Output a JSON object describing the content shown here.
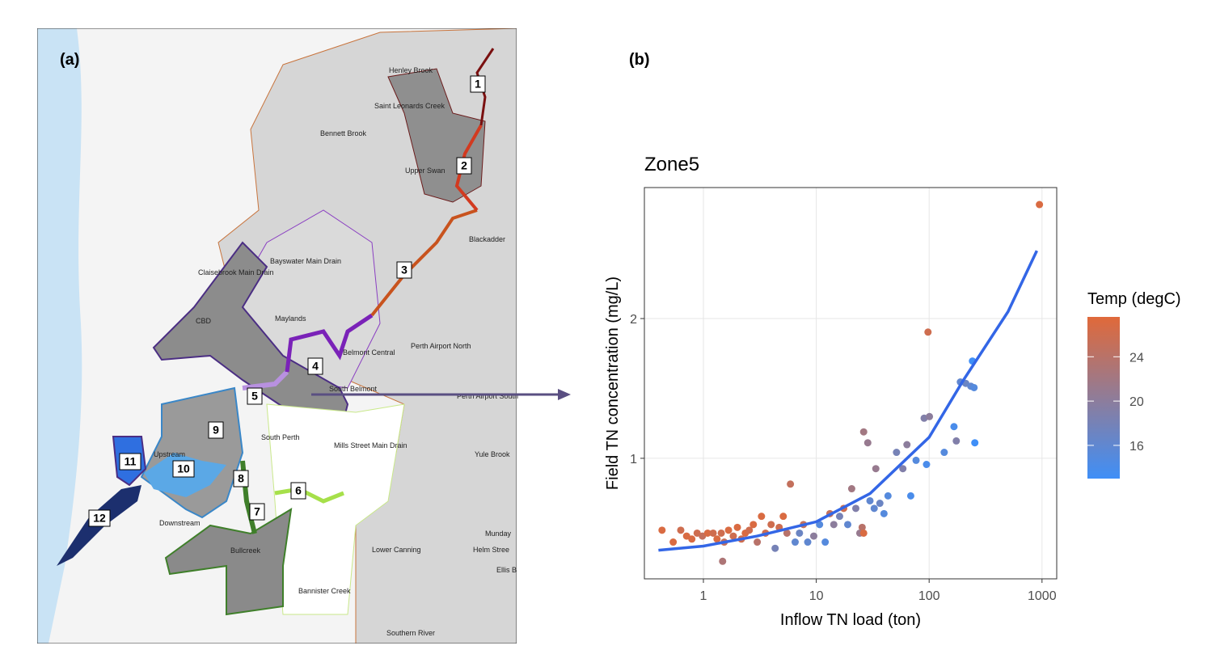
{
  "map": {
    "panel_label": "(a)",
    "zones": [
      "1",
      "2",
      "3",
      "4",
      "5",
      "6",
      "7",
      "8",
      "9",
      "10",
      "11",
      "12"
    ],
    "places": [
      "Henley Brook",
      "Saint Leonards Creek",
      "Bennett Brook",
      "Upper Swan",
      "Blackadder",
      "Bayswater Main Drain",
      "Claisebrook Main Drain",
      "CBD",
      "Maylands",
      "Belmont Central",
      "Perth Airport North",
      "South Belmont",
      "Perth Airport South",
      "South Perth",
      "Mills Street Main Drain",
      "Yule Brook",
      "Upstream",
      "Downstream",
      "Munday",
      "Helm Stree",
      "Ellis B",
      "Lower Canning",
      "Bullcreek",
      "Bannister Creek",
      "Southern River"
    ]
  },
  "chart_data": {
    "type": "scatter",
    "panel_label": "(b)",
    "title": "Zone5",
    "x_label": "Inflow TN load (ton)",
    "y_label": "Field TN concentration (mg/L)",
    "x_scale": "log",
    "y_scale": "log",
    "xlim": [
      0.3,
      1350
    ],
    "ylim": [
      0.55,
      3.83
    ],
    "xticks": [
      1,
      10,
      100,
      1000
    ],
    "yticks": [
      1,
      2
    ],
    "grid": true,
    "x": [
      0.43,
      0.54,
      0.63,
      0.71,
      0.79,
      0.88,
      0.98,
      1.09,
      1.22,
      1.32,
      1.44,
      1.53,
      1.48,
      1.67,
      1.84,
      2.0,
      2.17,
      2.35,
      2.55,
      2.77,
      3.0,
      3.27,
      3.55,
      3.98,
      4.32,
      4.69,
      5.1,
      5.5,
      5.9,
      6.5,
      7.1,
      7.7,
      8.4,
      9.5,
      10.7,
      12,
      13.2,
      14.3,
      16.1,
      17.5,
      19,
      20.6,
      22.4,
      24.3,
      25.5,
      26.3,
      28.6,
      26.3,
      29.9,
      32.6,
      36.6,
      39.8,
      33.7,
      43.2,
      51.4,
      58.5,
      63.6,
      68.7,
      76.6,
      90.3,
      94.8,
      97.7,
      100.6,
      136,
      166,
      174,
      189,
      211,
      234,
      242,
      250,
      254,
      949
    ],
    "y": [
      0.7,
      0.66,
      0.7,
      0.68,
      0.67,
      0.69,
      0.68,
      0.69,
      0.69,
      0.67,
      0.69,
      0.66,
      0.6,
      0.7,
      0.68,
      0.71,
      0.67,
      0.69,
      0.7,
      0.72,
      0.66,
      0.75,
      0.69,
      0.72,
      0.64,
      0.71,
      0.75,
      0.69,
      0.88,
      0.66,
      0.69,
      0.72,
      0.66,
      0.68,
      0.72,
      0.66,
      0.76,
      0.72,
      0.75,
      0.78,
      0.72,
      0.86,
      0.78,
      0.69,
      0.71,
      1.14,
      1.08,
      0.69,
      0.81,
      0.78,
      0.8,
      0.76,
      0.95,
      0.83,
      1.03,
      0.95,
      1.07,
      0.83,
      0.99,
      1.22,
      0.97,
      1.87,
      1.23,
      1.03,
      1.17,
      1.09,
      1.46,
      1.45,
      1.43,
      1.62,
      1.42,
      1.08,
      3.52
    ],
    "temp": [
      27,
      27,
      26,
      27,
      27,
      26,
      25,
      27,
      26,
      27,
      26,
      25,
      23,
      27,
      26,
      27,
      26,
      27,
      26,
      27,
      24,
      27,
      26,
      26,
      18,
      26,
      27,
      24,
      25,
      16,
      17,
      25,
      16,
      20,
      15,
      15,
      25,
      20,
      18,
      26,
      16,
      22,
      19,
      21,
      24,
      22,
      21,
      27,
      16,
      16,
      17,
      15,
      21,
      15,
      18,
      19,
      20,
      14,
      15,
      19,
      14,
      26,
      20,
      15,
      14,
      19,
      16,
      17,
      16,
      13,
      15,
      13,
      27
    ],
    "fit": {
      "color": "#3366e6",
      "x": [
        0.4,
        1,
        3,
        10,
        30,
        100,
        200,
        500,
        900
      ],
      "y": [
        0.634,
        0.647,
        0.68,
        0.73,
        0.84,
        1.11,
        1.47,
        2.07,
        2.8
      ]
    },
    "colorbar": {
      "title": "Temp (degC)",
      "limits": [
        13,
        27.6
      ],
      "ticks": [
        16,
        20,
        24
      ],
      "low": "#3f8ff7",
      "high": "#e0693a"
    }
  }
}
